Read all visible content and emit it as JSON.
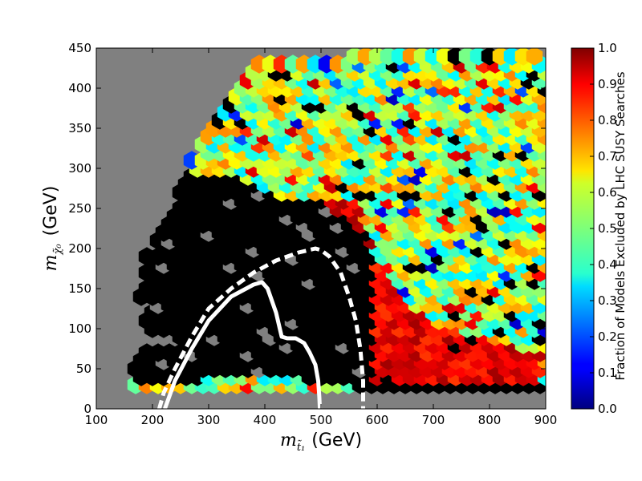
{
  "chart_data": {
    "type": "heatmap",
    "subtype": "hexbin",
    "title": "",
    "xlabel_sym": "m",
    "xlabel_sub": "t̃₁",
    "xlabel_unit": "(GeV)",
    "ylabel_sym": "m",
    "ylabel_sub": "χ̃₀",
    "ylabel_unit": "(GeV)",
    "xlim": [
      100,
      900
    ],
    "ylim": [
      0,
      450
    ],
    "xticks": [
      "100",
      "200",
      "300",
      "400",
      "500",
      "600",
      "700",
      "800",
      "900"
    ],
    "yticks": [
      "0",
      "50",
      "100",
      "150",
      "200",
      "250",
      "300",
      "350",
      "400",
      "450"
    ],
    "colorbar": {
      "label": "Fraction of Models Excluded by LHC SUSY Searches",
      "range": [
        0.0,
        1.0
      ],
      "ticks": [
        "0.0",
        "0.1",
        "0.2",
        "0.3",
        "0.4",
        "0.5",
        "0.6",
        "0.7",
        "0.8",
        "0.9",
        "1.0"
      ],
      "colormap": "jet",
      "over_color": "#000000"
    },
    "background_color": "#808080",
    "bins": {
      "x_min": 100,
      "x_max": 900,
      "y_min": 0,
      "y_max": 450,
      "note_ignored": "",
      "rows": [
        {
          "y": 40,
          "x_start": 165,
          "x_end": 900
        },
        {
          "y": 50,
          "x_start": 180,
          "x_end": 900
        },
        {
          "y": 60,
          "x_start": 190,
          "x_end": 900
        },
        {
          "y": 80,
          "x_start": 250,
          "x_end": 900
        },
        {
          "y": 100,
          "x_start": 185,
          "x_end": 900
        },
        {
          "y": 120,
          "x_start": 200,
          "x_end": 900
        },
        {
          "y": 140,
          "x_start": 180,
          "x_end": 900
        },
        {
          "y": 160,
          "x_start": 185,
          "x_end": 900
        },
        {
          "y": 180,
          "x_start": 190,
          "x_end": 900
        },
        {
          "y": 200,
          "x_start": 205,
          "x_end": 900
        },
        {
          "y": 220,
          "x_start": 220,
          "x_end": 900
        },
        {
          "y": 240,
          "x_start": 235,
          "x_end": 900
        },
        {
          "y": 260,
          "x_start": 245,
          "x_end": 900
        },
        {
          "y": 280,
          "x_start": 260,
          "x_end": 900
        },
        {
          "y": 300,
          "x_start": 270,
          "x_end": 900
        },
        {
          "y": 320,
          "x_start": 290,
          "x_end": 900
        },
        {
          "y": 340,
          "x_start": 300,
          "x_end": 900
        },
        {
          "y": 360,
          "x_start": 320,
          "x_end": 900
        },
        {
          "y": 380,
          "x_start": 340,
          "x_end": 900
        },
        {
          "y": 400,
          "x_start": 360,
          "x_end": 900
        },
        {
          "y": 420,
          "x_start": 380,
          "x_end": 900
        },
        {
          "y": 440,
          "x_start": 560,
          "x_end": 880
        }
      ],
      "black_region": [
        [
          160,
          40
        ],
        [
          300,
          40
        ],
        [
          400,
          50
        ],
        [
          480,
          40
        ],
        [
          560,
          30
        ],
        [
          600,
          30
        ],
        [
          600,
          200
        ],
        [
          560,
          240
        ],
        [
          500,
          260
        ],
        [
          430,
          270
        ],
        [
          360,
          290
        ],
        [
          300,
          300
        ],
        [
          260,
          300
        ],
        [
          200,
          230
        ],
        [
          170,
          150
        ]
      ],
      "red_region": [
        [
          560,
          30
        ],
        [
          900,
          30
        ],
        [
          900,
          70
        ],
        [
          800,
          90
        ],
        [
          700,
          110
        ],
        [
          640,
          150
        ],
        [
          600,
          200
        ],
        [
          570,
          260
        ],
        [
          520,
          270
        ],
        [
          480,
          270
        ],
        [
          500,
          250
        ],
        [
          560,
          230
        ],
        [
          590,
          180
        ],
        [
          590,
          80
        ]
      ],
      "bottom_black_strip": {
        "y_min": 20,
        "y_max": 35,
        "x_min": 600,
        "x_max": 900
      }
    },
    "series": [
      {
        "style": "solid",
        "color": "#ffffff",
        "x": [
          222,
          240,
          270,
          300,
          340,
          380,
          395,
          405,
          420,
          430,
          440,
          455,
          470,
          480,
          490,
          495,
          497,
          498
        ],
        "y": [
          0,
          35,
          75,
          110,
          140,
          155,
          158,
          150,
          120,
          90,
          88,
          88,
          82,
          70,
          55,
          35,
          15,
          0
        ]
      },
      {
        "style": "dashed",
        "color": "#ffffff",
        "x": [
          212,
          220,
          240,
          270,
          300,
          340,
          380,
          420,
          460,
          490,
          500,
          515,
          535,
          550,
          562,
          570,
          575,
          575
        ],
        "y": [
          0,
          20,
          50,
          90,
          125,
          150,
          170,
          185,
          195,
          200,
          198,
          190,
          170,
          140,
          110,
          75,
          35,
          0
        ]
      }
    ]
  }
}
